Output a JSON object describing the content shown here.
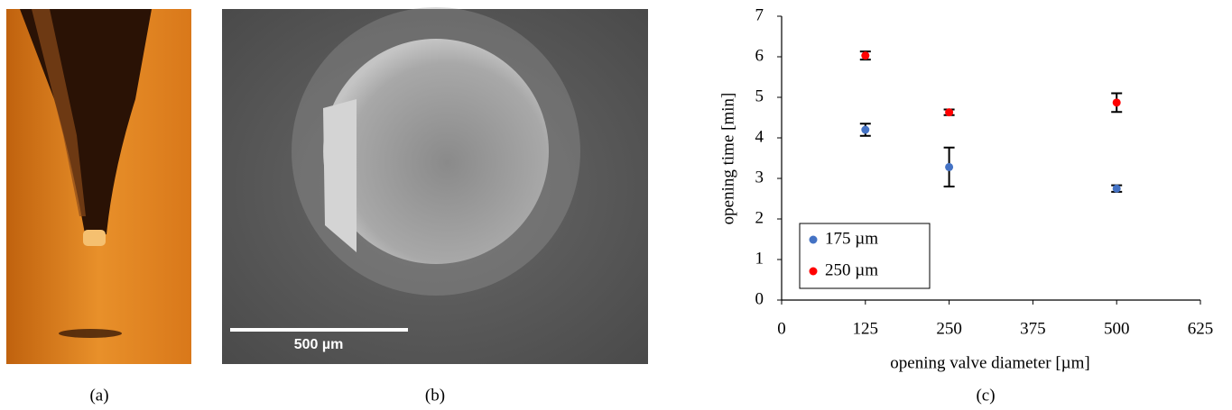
{
  "panels": {
    "a": "(a)",
    "b": "(b)",
    "c": "(c)"
  },
  "scale_bar": "500 µm",
  "chart_data": {
    "type": "scatter",
    "x_label": "opening valve diameter [µm]",
    "y_label": "opening time [min]",
    "x": [
      125,
      250,
      500
    ],
    "series": [
      {
        "name": "175 µm",
        "color": "#4472c4",
        "values": [
          4.2,
          3.28,
          2.75
        ],
        "errors": [
          0.15,
          0.48,
          0.08
        ]
      },
      {
        "name": "250 µm",
        "color": "#ff0000",
        "values": [
          6.03,
          4.63,
          4.87
        ],
        "errors": [
          0.1,
          0.07,
          0.23
        ]
      }
    ],
    "xlim": [
      0,
      625
    ],
    "xticks": [
      0,
      125,
      250,
      375,
      500,
      625
    ],
    "ylim": [
      0,
      7
    ],
    "yticks": [
      0,
      1,
      2,
      3,
      4,
      5,
      6,
      7
    ],
    "legend": "lower left",
    "grid": false
  }
}
